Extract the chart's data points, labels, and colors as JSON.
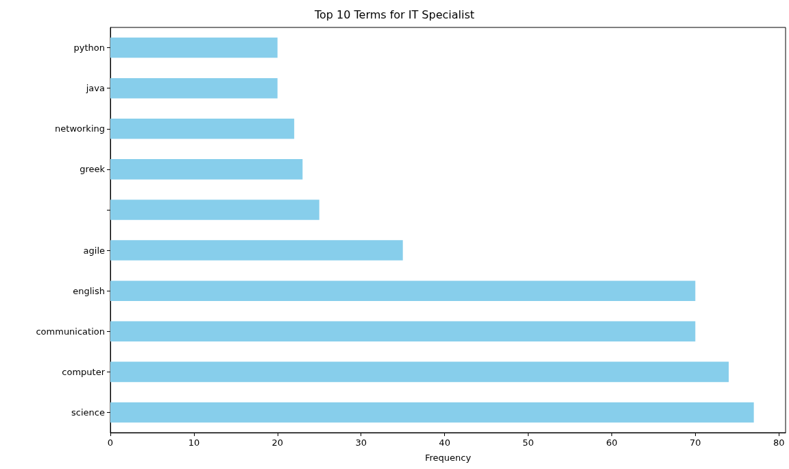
{
  "chart_data": {
    "type": "bar",
    "orientation": "horizontal",
    "title": "Top 10 Terms for IT Specialist",
    "xlabel": "Frequency",
    "categories": [
      "python",
      "java",
      "networking",
      "greek",
      null,
      "agile",
      "english",
      "communication",
      "computer",
      "science"
    ],
    "values": [
      20,
      20,
      22,
      23,
      25,
      35,
      70,
      70,
      74,
      77
    ],
    "color": "#87ceeb",
    "xlim": [
      0,
      80.8
    ],
    "xticks": [
      0,
      10,
      20,
      30,
      40,
      50,
      60,
      70,
      80
    ]
  }
}
